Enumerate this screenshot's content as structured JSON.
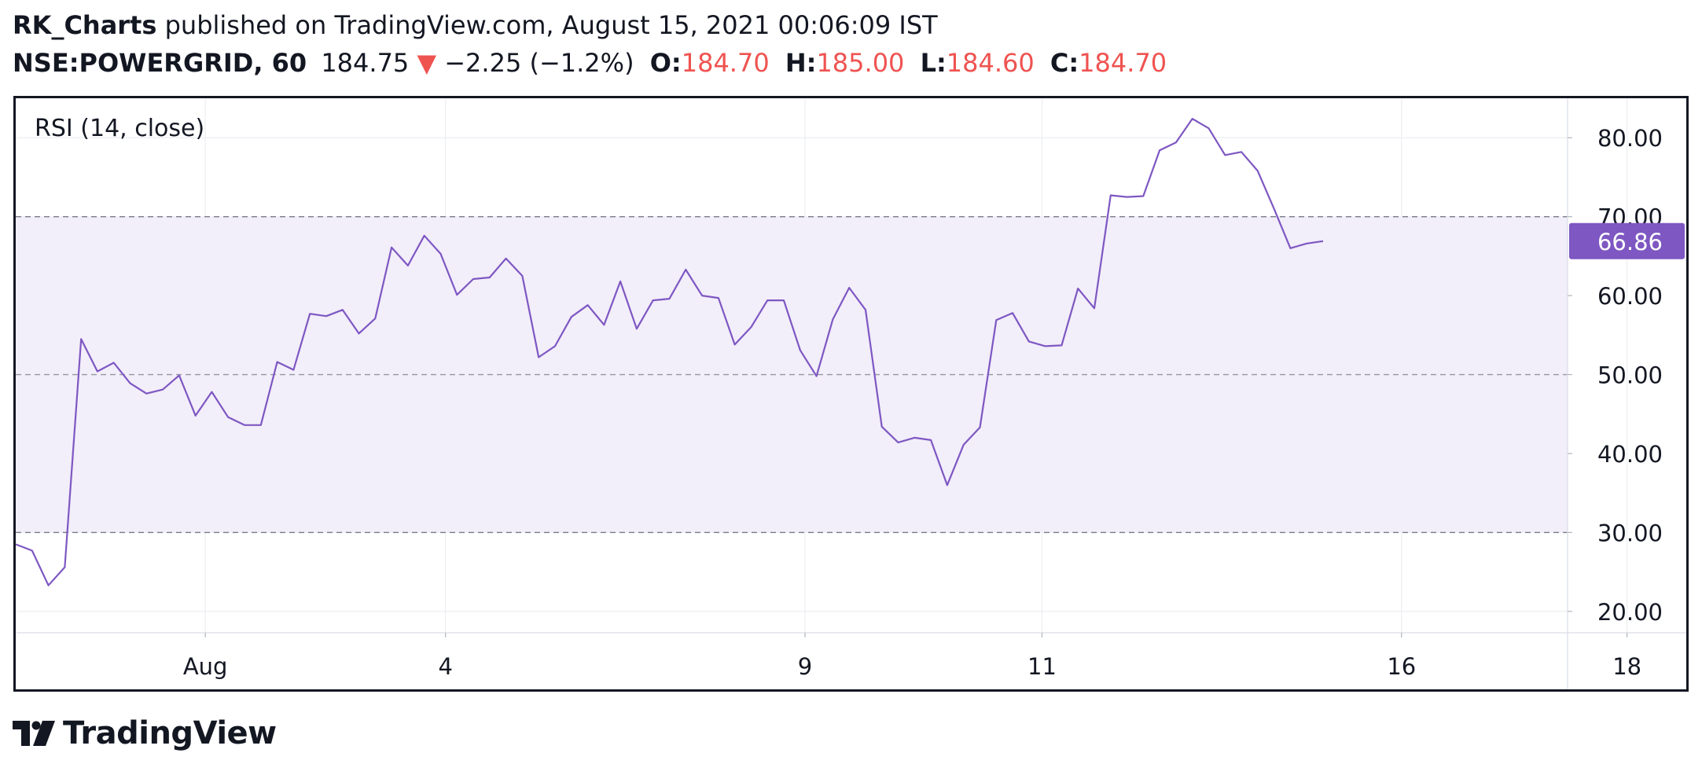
{
  "header": {
    "author": "RK_Charts",
    "published_text": " published on TradingView.com, August 15, 2021 00:06:09 IST",
    "symbol": "NSE:POWERGRID, 60",
    "price": "184.75",
    "change_arrow": "▼",
    "change": "−2.25 (−1.2%)",
    "open_label": "O:",
    "open_value": "184.70",
    "high_label": "H:",
    "high_value": "185.00",
    "low_label": "L:",
    "low_value": "184.60",
    "close_label": "C:",
    "close_value": "184.70"
  },
  "footer": {
    "brand": "TradingView"
  },
  "colors": {
    "rsi_line": "#7e57c2",
    "band_fill": "#f2eefa",
    "badge_bg": "#7e57c2",
    "down_red": "#ef5350"
  },
  "chart_data": {
    "type": "line",
    "indicator_label": "RSI (14, close)",
    "series": [
      {
        "name": "RSI (14, close)",
        "values": [
          28.5,
          27.7,
          23.3,
          25.6,
          54.5,
          50.4,
          51.5,
          48.9,
          47.6,
          48.1,
          49.9,
          44.8,
          47.8,
          44.6,
          43.6,
          43.6,
          51.6,
          50.6,
          57.7,
          57.4,
          58.2,
          55.2,
          57.1,
          66.1,
          63.8,
          67.6,
          65.3,
          60.1,
          62.1,
          62.3,
          64.7,
          62.5,
          52.2,
          53.6,
          57.3,
          58.8,
          56.3,
          61.8,
          55.8,
          59.4,
          59.6,
          63.3,
          60.0,
          59.7,
          53.8,
          56.0,
          59.4,
          59.4,
          53.1,
          49.8,
          57.0,
          61.0,
          58.2,
          43.4,
          41.4,
          42.0,
          41.7,
          36.0,
          41.1,
          43.3,
          56.9,
          57.8,
          54.2,
          53.6,
          53.7,
          60.9,
          58.4,
          72.7,
          72.5,
          72.6,
          78.4,
          79.4,
          82.4,
          81.2,
          77.8,
          78.2,
          75.8,
          71.0,
          66.0,
          66.6,
          66.9
        ]
      }
    ],
    "last_value": "66.86",
    "y_ticks": [
      "80.00",
      "70.00",
      "60.00",
      "50.00",
      "40.00",
      "30.00",
      "20.00"
    ],
    "ylim": [
      17.3,
      85
    ],
    "x_ticks": [
      "Aug",
      "4",
      "9",
      "11",
      "16",
      "18"
    ],
    "bands": {
      "upper": 70,
      "middle": 50,
      "lower": 30
    },
    "grid": true,
    "legend": "top-left"
  }
}
